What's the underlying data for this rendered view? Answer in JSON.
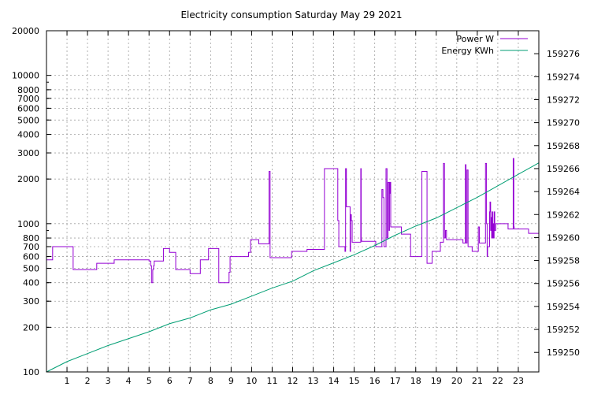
{
  "chart_data": {
    "type": "line",
    "title": "Electricity consumption Saturday May 29 2021",
    "xlabel": "",
    "ylabel": "",
    "x_unit": "hour of day",
    "xlim": [
      0,
      24
    ],
    "ylim": [
      100,
      20000
    ],
    "y_scale": "log",
    "y2lim": [
      159248.3,
      159278
    ],
    "grid": true,
    "legend_position": "top-right",
    "x_ticks": [
      1,
      2,
      3,
      4,
      5,
      6,
      7,
      8,
      9,
      10,
      11,
      12,
      13,
      14,
      15,
      16,
      17,
      18,
      19,
      20,
      21,
      22,
      23
    ],
    "y_ticks": [
      {
        "value": 100,
        "label": "100"
      },
      {
        "value": 200,
        "label": "200"
      },
      {
        "value": 300,
        "label": "300"
      },
      {
        "value": 400,
        "label": "400"
      },
      {
        "value": 500,
        "label": "500"
      },
      {
        "value": 600,
        "label": "600"
      },
      {
        "value": 700,
        "label": "700"
      },
      {
        "value": 800,
        "label": "800"
      },
      {
        "value": 1000,
        "label": "1000"
      },
      {
        "value": 2000,
        "label": "2000"
      },
      {
        "value": 3000,
        "label": "3000"
      },
      {
        "value": 4000,
        "label": "4000"
      },
      {
        "value": 5000,
        "label": "5000"
      },
      {
        "value": 6000,
        "label": "6000"
      },
      {
        "value": 7000,
        "label": "7000"
      },
      {
        "value": 8000,
        "label": "8000"
      },
      {
        "value": 10000,
        "label": "10000"
      },
      {
        "value": 20000,
        "label": "20000"
      }
    ],
    "y2_ticks": [
      159250,
      159252,
      159254,
      159256,
      159258,
      159260,
      159262,
      159264,
      159266,
      159268,
      159270,
      159272,
      159274,
      159276
    ],
    "series": [
      {
        "name": "Power W",
        "axis": "y",
        "color": "#9400d3",
        "step": true,
        "x": [
          0,
          0.3,
          0.6,
          1.25,
          1.3,
          2.4,
          2.45,
          3.25,
          3.3,
          5.0,
          5.08,
          5.12,
          5.18,
          5.22,
          5.25,
          5.3,
          5.7,
          5.75,
          6.0,
          6.05,
          6.3,
          6.35,
          7.0,
          7.05,
          7.5,
          7.55,
          7.9,
          7.95,
          8.4,
          8.45,
          8.9,
          8.95,
          9.0,
          9.05,
          9.8,
          9.85,
          9.95,
          10.0,
          10.3,
          10.35,
          10.85,
          10.9,
          11.9,
          11.95,
          12.65,
          12.7,
          13.5,
          13.55,
          14.2,
          14.25,
          14.5,
          14.55,
          14.58,
          14.62,
          14.8,
          14.82,
          14.84,
          14.86,
          14.9,
          15.3,
          15.32,
          15.34,
          15.36,
          16.0,
          16.05,
          16.3,
          16.35,
          16.4,
          16.45,
          16.55,
          16.6,
          16.65,
          16.7,
          16.72,
          16.74,
          16.76,
          16.78,
          16.8,
          16.82,
          16.9,
          17.25,
          17.3,
          17.7,
          17.75,
          18.25,
          18.3,
          18.55,
          18.6,
          18.8,
          18.85,
          19.2,
          19.25,
          19.35,
          19.4,
          19.45,
          19.5,
          20.0,
          20.05,
          20.3,
          20.35,
          20.42,
          20.45,
          20.5,
          20.55,
          20.7,
          20.75,
          21.0,
          21.05,
          21.1,
          21.15,
          21.4,
          21.45,
          21.48,
          21.5,
          21.55,
          21.6,
          21.62,
          21.65,
          21.68,
          21.7,
          21.72,
          21.75,
          21.78,
          21.8,
          21.82,
          21.85,
          21.9,
          22.0,
          22.5,
          22.55,
          22.75,
          22.78,
          22.8,
          22.9,
          22.95,
          23.5,
          23.55,
          24.0
        ],
        "y": [
          570,
          700,
          700,
          700,
          490,
          490,
          540,
          540,
          570,
          560,
          520,
          400,
          490,
          520,
          560,
          560,
          680,
          680,
          640,
          640,
          490,
          490,
          460,
          460,
          570,
          570,
          680,
          680,
          400,
          400,
          470,
          600,
          600,
          600,
          600,
          640,
          780,
          780,
          780,
          730,
          2250,
          590,
          590,
          650,
          650,
          670,
          670,
          2350,
          1050,
          700,
          700,
          650,
          2350,
          1300,
          650,
          1100,
          1150,
          1050,
          750,
          750,
          2350,
          780,
          760,
          760,
          700,
          700,
          1700,
          1500,
          700,
          2350,
          800,
          1900,
          900,
          1900,
          1600,
          1900,
          950,
          950,
          950,
          950,
          950,
          850,
          850,
          600,
          600,
          2250,
          540,
          540,
          650,
          650,
          750,
          750,
          2550,
          800,
          900,
          780,
          780,
          780,
          740,
          740,
          2500,
          740,
          2300,
          700,
          700,
          650,
          650,
          950,
          740,
          740,
          2550,
          1000,
          600,
          700,
          700,
          1200,
          1400,
          900,
          1100,
          800,
          1200,
          800,
          1000,
          800,
          1200,
          900,
          1000,
          1000,
          920,
          920,
          2750,
          950,
          920,
          920,
          920,
          860,
          860,
          860
        ]
      },
      {
        "name": "Energy KWh",
        "axis": "y2",
        "color": "#009e73",
        "step": false,
        "x": [
          0,
          1,
          2,
          3,
          4,
          5,
          6,
          7,
          8,
          9,
          10,
          11,
          12,
          13,
          14,
          15,
          16,
          17,
          18,
          19,
          20,
          21,
          22,
          23,
          24
        ],
        "y": [
          159248.3,
          159249.2,
          159249.9,
          159250.6,
          159251.2,
          159251.8,
          159252.5,
          159253.0,
          159253.7,
          159254.2,
          159254.9,
          159255.6,
          159256.2,
          159257.1,
          159257.8,
          159258.5,
          159259.3,
          159260.2,
          159261.0,
          159261.7,
          159262.6,
          159263.5,
          159264.5,
          159265.5,
          159266.5
        ]
      }
    ]
  }
}
